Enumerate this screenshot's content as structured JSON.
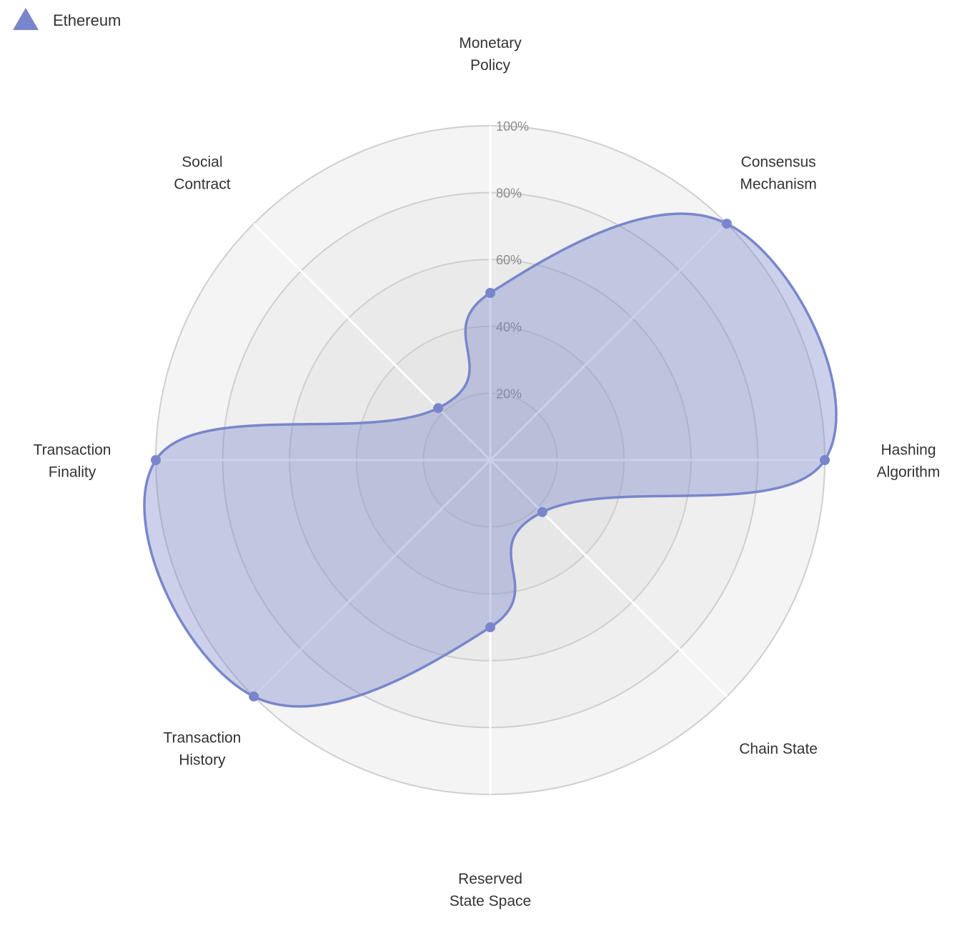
{
  "chart_data": {
    "type": "radar",
    "title": "",
    "axes": [
      [
        "Monetary",
        "Policy"
      ],
      [
        "Consensus",
        "Mechanism"
      ],
      [
        "Hashing",
        "Algorithm"
      ],
      [
        "Chain State"
      ],
      [
        "Reserved",
        "State Space"
      ],
      [
        "Transaction",
        "History"
      ],
      [
        "Transaction",
        "Finality"
      ],
      [
        "Social",
        "Contract"
      ]
    ],
    "ticks": [
      "20%",
      "40%",
      "60%",
      "80%",
      "100%"
    ],
    "rlim": [
      0,
      100
    ],
    "series": [
      {
        "name": "Ethereum",
        "values": [
          50,
          100,
          100,
          22,
          50,
          100,
          100,
          22
        ],
        "color": "#7986cb"
      }
    ],
    "legend": {
      "position": "top-left",
      "marker": "triangle-icon"
    },
    "grid": true
  }
}
